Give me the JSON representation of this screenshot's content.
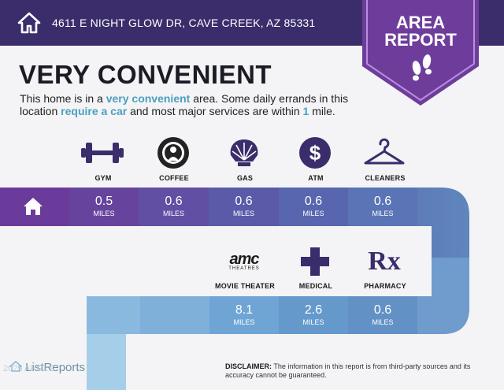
{
  "header": {
    "address": "4611 E NIGHT GLOW DR, CAVE CREEK, AZ 85331",
    "badge_line1": "AREA",
    "badge_line2": "REPORT"
  },
  "main": {
    "headline": "VERY CONVENIENT",
    "desc_part1": "This home is in a ",
    "desc_bold1": "very convenient",
    "desc_part2": " area. Some daily errands in this location ",
    "desc_bold2": "require a car",
    "desc_part3": " and most major services are within ",
    "desc_bold3": "1",
    "desc_part4": " mile."
  },
  "row1": [
    {
      "label": "GYM",
      "value": "0.5",
      "unit": "MILES",
      "icon": "dumbbell-icon"
    },
    {
      "label": "COFFEE",
      "value": "0.6",
      "unit": "MILES",
      "icon": "coffee-logo-icon"
    },
    {
      "label": "GAS",
      "value": "0.6",
      "unit": "MILES",
      "icon": "shell-icon"
    },
    {
      "label": "ATM",
      "value": "0.6",
      "unit": "MILES",
      "icon": "dollar-icon"
    },
    {
      "label": "CLEANERS",
      "value": "0.6",
      "unit": "MILES",
      "icon": "hanger-icon"
    }
  ],
  "row2": [
    {
      "label": "MOVIE THEATER",
      "value": "8.1",
      "unit": "MILES",
      "icon": "amc-logo-icon",
      "logo_text": "amc",
      "logo_sub": "THEATRES"
    },
    {
      "label": "MEDICAL",
      "value": "2.6",
      "unit": "MILES",
      "icon": "medical-cross-icon"
    },
    {
      "label": "PHARMACY",
      "value": "0.6",
      "unit": "MILES",
      "icon": "rx-icon",
      "logo_text": "Rx"
    }
  ],
  "footer": {
    "brand": "ListReports",
    "copyright": "2025 ARMLS",
    "disclaimer_label": "DISCLAIMER:",
    "disclaimer_text": " The information in this report is from third-party sources and its accuracy cannot be guaranteed."
  },
  "colors": {
    "topbar": "#3b2d6b",
    "badge": "#6e3d9c",
    "accent_text": "#4b9fbf",
    "path_dark": "#6a3b9a",
    "path_light": "#a5cfe8"
  }
}
